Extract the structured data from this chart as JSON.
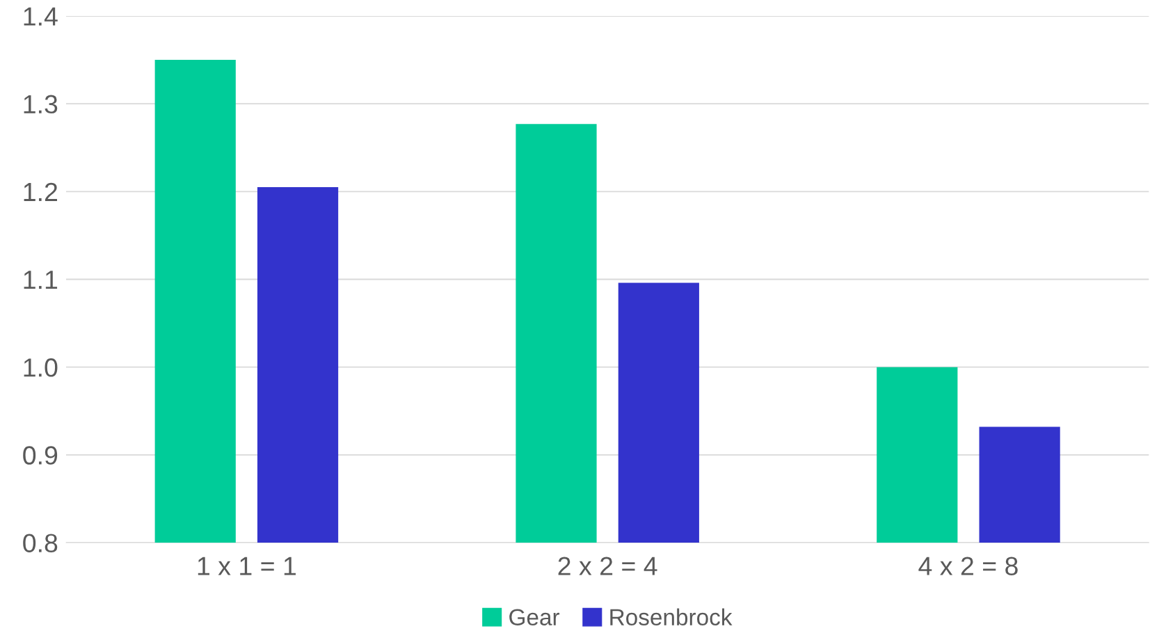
{
  "chart_data": {
    "type": "bar",
    "categories": [
      "1 x 1 = 1",
      "2 x 2 = 4",
      "4 x 2 = 8"
    ],
    "series": [
      {
        "name": "Gear",
        "color": "#00cc99",
        "values": [
          1.35,
          1.277,
          1.0
        ]
      },
      {
        "name": "Rosenbrock",
        "color": "#3333cc",
        "values": [
          1.205,
          1.096,
          0.932
        ]
      }
    ],
    "ylim": [
      0.8,
      1.4
    ],
    "yticks": [
      {
        "value": 0.8,
        "label": "0.8"
      },
      {
        "value": 0.9,
        "label": "0.9"
      },
      {
        "value": 1.0,
        "label": "1.0"
      },
      {
        "value": 1.1,
        "label": "1.1"
      },
      {
        "value": 1.2,
        "label": "1.2"
      },
      {
        "value": 1.3,
        "label": "1.3"
      },
      {
        "value": 1.4,
        "label": "1.4"
      }
    ],
    "grid": "y",
    "legend": "bottom"
  }
}
